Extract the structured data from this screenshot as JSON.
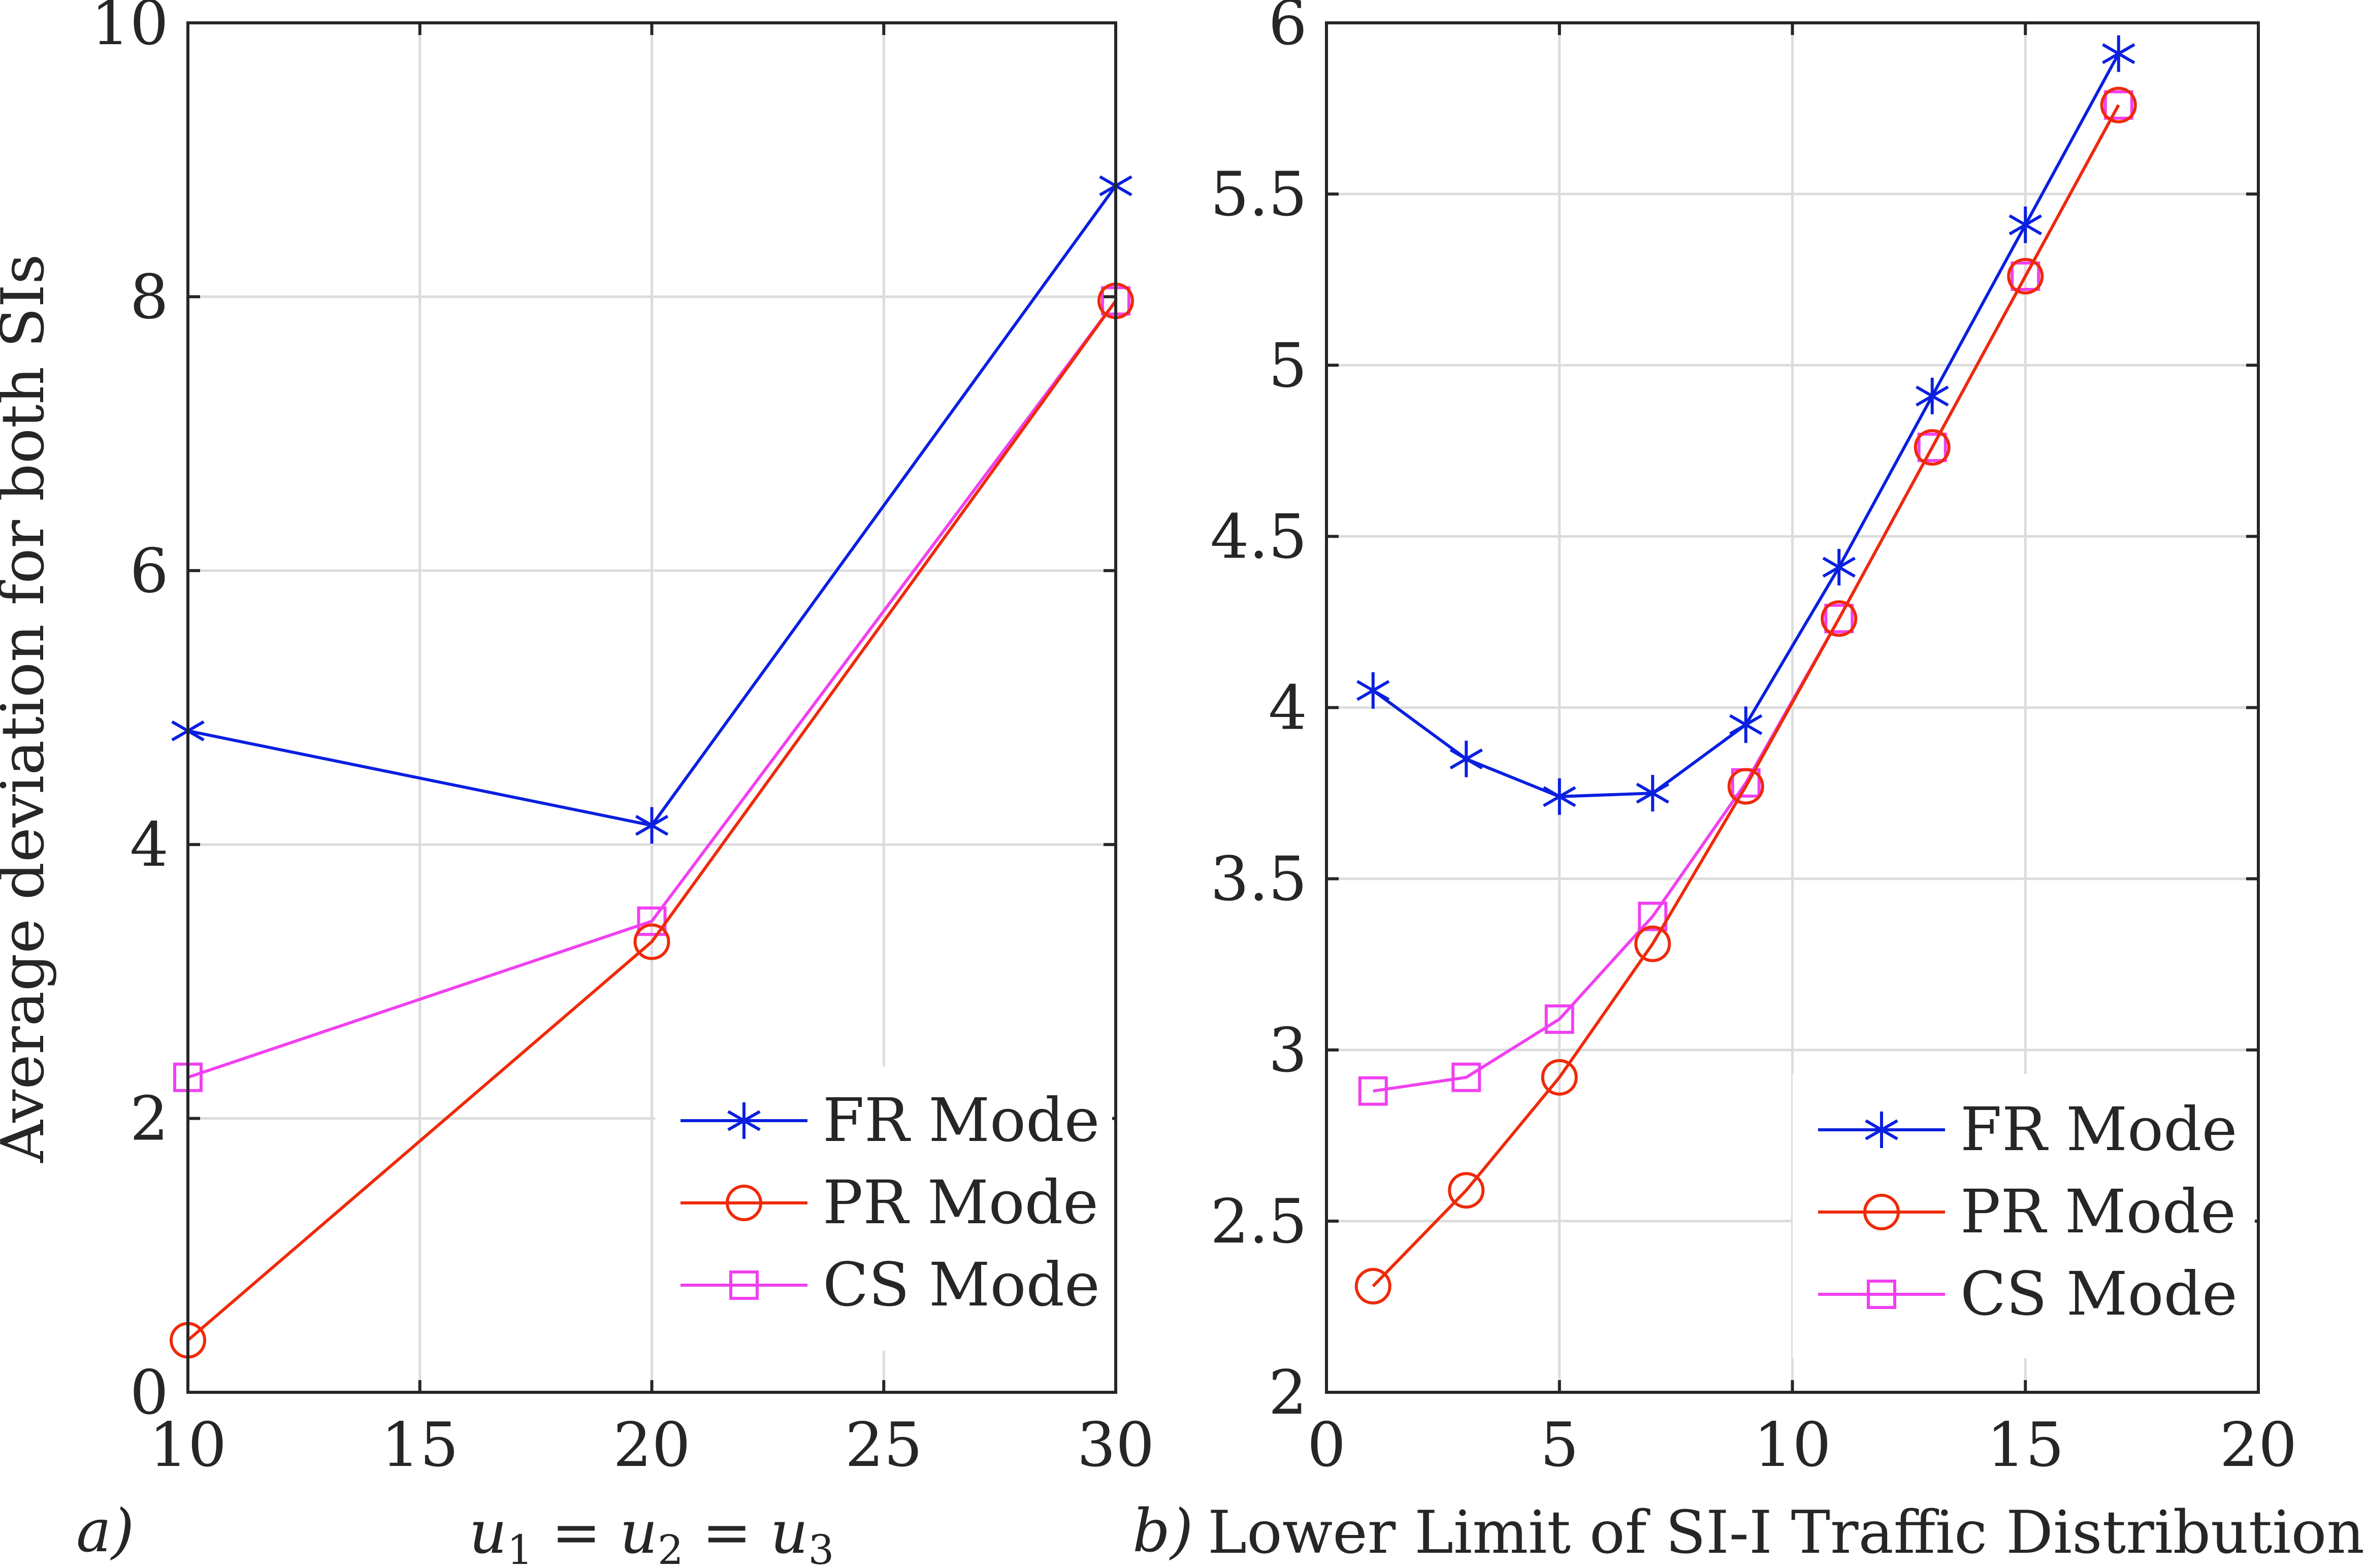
{
  "chart_data": [
    {
      "type": "line",
      "panel_label": "a)",
      "xlabel_parts": {
        "u1": "u",
        "s1": "1",
        "eq1": " = ",
        "u2": "u",
        "s2": "2",
        "eq2": " = ",
        "u3": "u",
        "s3": "3"
      },
      "ylabel": "Average deviation for both SIs",
      "xlim": [
        10,
        30
      ],
      "ylim": [
        0,
        10
      ],
      "xticks": [
        10,
        15,
        20,
        25,
        30
      ],
      "yticks": [
        0,
        2,
        4,
        6,
        8,
        10
      ],
      "grid": true,
      "legend_position": "bottom-right",
      "x": [
        10,
        20,
        30
      ],
      "series": [
        {
          "name": "FR Mode",
          "marker": "asterisk",
          "color": "#0a1fe0",
          "values": [
            4.83,
            4.14,
            8.81
          ]
        },
        {
          "name": "PR Mode",
          "marker": "circle",
          "color": "#ee2a0a",
          "values": [
            0.38,
            3.29,
            7.97
          ]
        },
        {
          "name": "CS Mode",
          "marker": "square",
          "color": "#f040f0",
          "values": [
            2.3,
            3.44,
            7.97
          ]
        }
      ]
    },
    {
      "type": "line",
      "panel_label": "b)",
      "xlabel": "Lower Limit of SI-I Traffic Distribution",
      "ylabel": "",
      "xlim": [
        0,
        20
      ],
      "ylim": [
        2,
        6
      ],
      "xticks": [
        0,
        5,
        10,
        15,
        20
      ],
      "yticks": [
        2,
        2.5,
        3,
        3.5,
        4,
        4.5,
        5,
        5.5,
        6
      ],
      "grid": true,
      "legend_position": "bottom-right",
      "x": [
        1,
        3,
        5,
        7,
        9,
        11,
        13,
        15,
        17
      ],
      "series": [
        {
          "name": "FR Mode",
          "marker": "asterisk",
          "color": "#0a1fe0",
          "values": [
            4.05,
            3.85,
            3.74,
            3.75,
            3.95,
            4.41,
            4.91,
            5.41,
            5.91
          ]
        },
        {
          "name": "PR Mode",
          "marker": "circle",
          "color": "#ee2a0a",
          "values": [
            2.31,
            2.59,
            2.92,
            3.31,
            3.77,
            4.26,
            4.76,
            5.26,
            5.76
          ]
        },
        {
          "name": "CS Mode",
          "marker": "square",
          "color": "#f040f0",
          "values": [
            2.88,
            2.92,
            3.09,
            3.39,
            3.78,
            4.26,
            4.76,
            5.26,
            5.76
          ]
        }
      ]
    }
  ]
}
